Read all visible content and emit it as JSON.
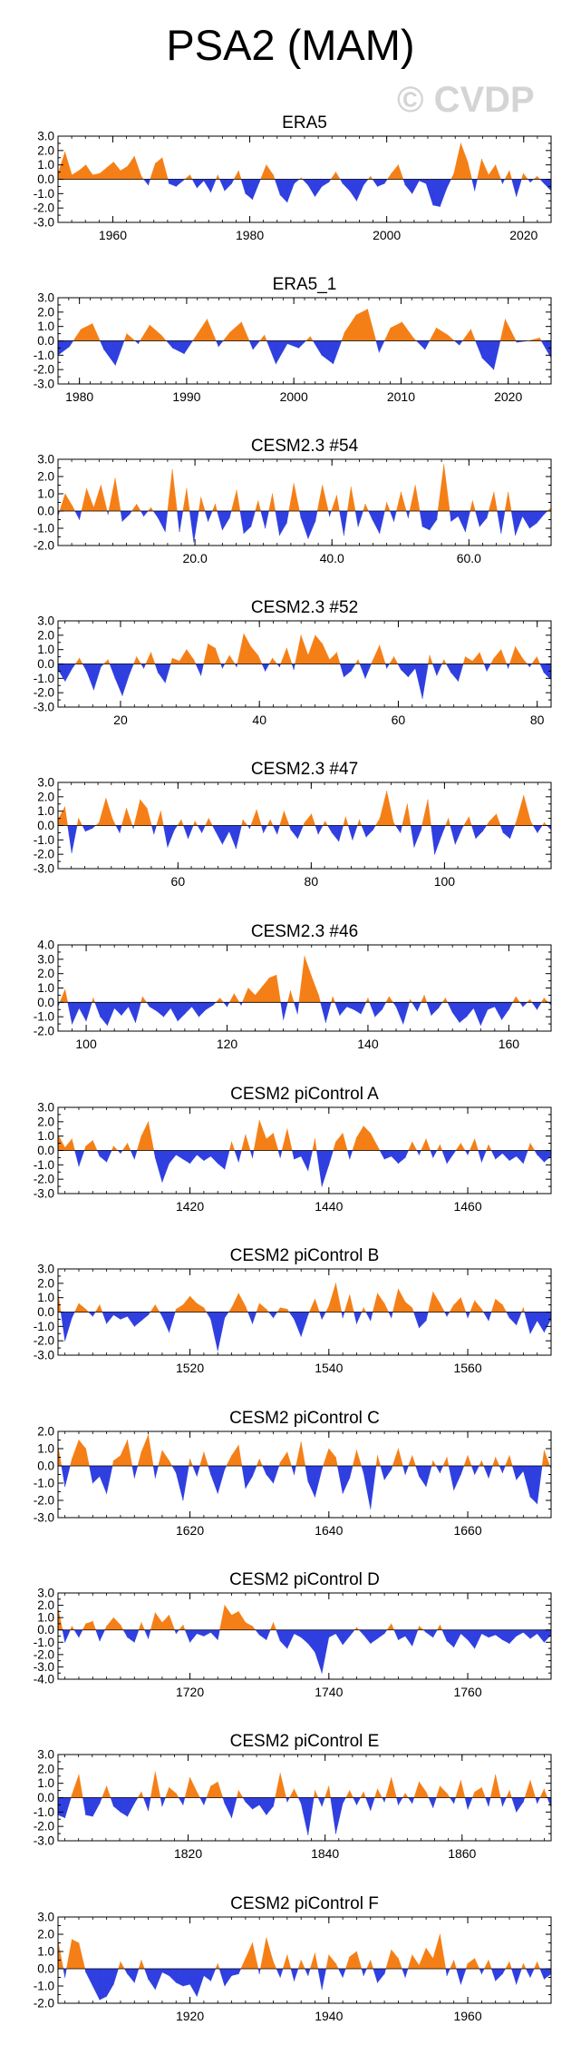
{
  "header": {
    "title": "PSA2 (MAM)",
    "watermark": "© CVDP"
  },
  "colors": {
    "positive": "#f57f17",
    "negative": "#2f3fe0",
    "axis": "#000000"
  },
  "chart_data": [
    {
      "type": "area",
      "title": "ERA5",
      "xlim": [
        1952,
        2024
      ],
      "ylim": [
        -3,
        3
      ],
      "yticks": [
        -3,
        -2,
        -1,
        0,
        1,
        2,
        3
      ],
      "ytick_labels": [
        "-3.0",
        "-2.0",
        "-1.0",
        "0.0",
        "1.0",
        "2.0",
        "3.0"
      ],
      "xticks": [
        1960,
        1980,
        2000,
        2020
      ],
      "xtick_labels": [
        "1960",
        "1980",
        "2000",
        "2020"
      ],
      "values": [
        0.4,
        1.9,
        0.3,
        0.6,
        1.0,
        0.3,
        0.4,
        0.8,
        1.2,
        0.6,
        0.9,
        1.6,
        0.2,
        -0.4,
        1.1,
        1.5,
        -0.3,
        -0.5,
        -0.1,
        0.3,
        -0.6,
        -0.1,
        -0.9,
        0.3,
        -0.8,
        -0.3,
        0.6,
        -1.0,
        -1.4,
        -0.2,
        1.0,
        0.3,
        -1.1,
        -1.6,
        -0.3,
        0.1,
        -0.4,
        -1.2,
        -0.5,
        -0.2,
        0.5,
        -0.3,
        -0.8,
        -1.5,
        -0.4,
        0.2,
        -0.5,
        -0.3,
        0.4,
        1.0,
        -0.4,
        -1.0,
        -0.1,
        -0.3,
        -1.8,
        -1.9,
        -0.6,
        0.4,
        2.5,
        1.2,
        -0.8,
        1.4,
        0.3,
        1.0,
        -0.3,
        0.6,
        -1.2,
        0.4,
        -0.2,
        0.2,
        -0.3,
        -0.8
      ]
    },
    {
      "type": "area",
      "title": "ERA5_1",
      "xlim": [
        1978,
        2024
      ],
      "ylim": [
        -3,
        3
      ],
      "yticks": [
        -3,
        -2,
        -1,
        0,
        1,
        2,
        3
      ],
      "ytick_labels": [
        "-3.0",
        "-2.0",
        "-1.0",
        "0.0",
        "1.0",
        "2.0",
        "3.0"
      ],
      "xticks": [
        1980,
        1990,
        2000,
        2010,
        2020
      ],
      "xtick_labels": [
        "1980",
        "1990",
        "2000",
        "2010",
        "2020"
      ],
      "values": [
        -1.0,
        -0.4,
        0.8,
        1.2,
        -0.6,
        -1.7,
        0.5,
        -0.2,
        1.1,
        0.4,
        -0.5,
        -0.9,
        0.3,
        1.5,
        -0.4,
        0.6,
        1.3,
        -0.6,
        0.4,
        -1.6,
        -0.2,
        -0.5,
        0.3,
        -1.0,
        -1.6,
        0.6,
        1.8,
        2.2,
        -0.8,
        0.9,
        1.3,
        0.2,
        -0.6,
        0.9,
        0.4,
        -0.3,
        0.8,
        -1.2,
        -2.0,
        1.5,
        -0.1,
        0.0,
        0.2,
        -1.2
      ]
    },
    {
      "type": "area",
      "title": "CESM2.3 #54",
      "xlim": [
        0,
        72
      ],
      "ylim": [
        -2,
        3
      ],
      "yticks": [
        -2,
        -1,
        0,
        1,
        2,
        3
      ],
      "ytick_labels": [
        "-2.0",
        "-1.0",
        "0.0",
        "1.0",
        "2.0",
        "3.0"
      ],
      "xticks": [
        20,
        40,
        60
      ],
      "xtick_labels": [
        "20.0",
        "40.0",
        "60.0"
      ],
      "values": [
        -0.3,
        1.0,
        0.3,
        -0.5,
        1.3,
        0.2,
        1.5,
        -0.2,
        1.9,
        -0.6,
        -0.2,
        0.4,
        -0.3,
        0.2,
        -0.4,
        -1.2,
        2.4,
        -1.2,
        1.3,
        -1.8,
        0.8,
        -0.6,
        0.4,
        -1.1,
        -0.4,
        1.2,
        -1.3,
        -0.9,
        0.6,
        -1.0,
        1.0,
        -1.4,
        -0.7,
        1.6,
        -0.4,
        -1.6,
        -0.6,
        1.5,
        -0.3,
        0.9,
        -1.4,
        1.4,
        -0.9,
        0.4,
        -0.5,
        -1.3,
        0.5,
        -0.6,
        1.1,
        -0.4,
        1.5,
        -0.9,
        -1.1,
        -0.5,
        2.7,
        -0.6,
        -0.3,
        -1.2,
        0.6,
        -0.9,
        -0.4,
        1.1,
        -1.3,
        1.1,
        -1.4,
        -0.3,
        -1.0,
        -0.7,
        -0.2,
        0.2
      ]
    },
    {
      "type": "area",
      "title": "CESM2.3 #52",
      "xlim": [
        11,
        82
      ],
      "ylim": [
        -3,
        3
      ],
      "yticks": [
        -3,
        -2,
        -1,
        0,
        1,
        2,
        3
      ],
      "ytick_labels": [
        "-3.0",
        "-2.0",
        "-1.0",
        "0.0",
        "1.0",
        "2.0",
        "3.0"
      ],
      "xticks": [
        20,
        40,
        60,
        80
      ],
      "xtick_labels": [
        "20",
        "40",
        "60",
        "80"
      ],
      "values": [
        -0.4,
        -1.2,
        -0.3,
        0.4,
        -0.5,
        -1.8,
        -0.2,
        0.3,
        -1.0,
        -2.2,
        -0.7,
        0.5,
        -0.3,
        0.8,
        -0.6,
        -1.3,
        0.4,
        0.2,
        1.0,
        0.3,
        -0.8,
        1.4,
        1.1,
        -0.3,
        0.6,
        -0.2,
        2.1,
        1.2,
        0.6,
        -0.5,
        0.4,
        -0.2,
        1.1,
        -0.4,
        2.0,
        0.6,
        2.0,
        1.4,
        0.3,
        0.8,
        -0.9,
        -0.5,
        0.3,
        -1.0,
        0.2,
        1.3,
        -0.3,
        0.5,
        -0.4,
        -0.9,
        -0.3,
        -2.4,
        0.6,
        -0.8,
        0.3,
        -0.6,
        -1.2,
        0.5,
        0.2,
        0.8,
        -0.5,
        0.4,
        1.0,
        -0.3,
        1.2,
        0.4,
        -0.2,
        0.5,
        -0.6,
        -1.1
      ]
    },
    {
      "type": "area",
      "title": "CESM2.3 #47",
      "xlim": [
        42,
        116
      ],
      "ylim": [
        -3,
        3
      ],
      "yticks": [
        -3,
        -2,
        -1,
        0,
        1,
        2,
        3
      ],
      "ytick_labels": [
        "-3.0",
        "-2.0",
        "-1.0",
        "0.0",
        "1.0",
        "2.0",
        "3.0"
      ],
      "xticks": [
        60,
        80,
        100
      ],
      "xtick_labels": [
        "60",
        "80",
        "100"
      ],
      "values": [
        0.4,
        1.3,
        -1.9,
        0.5,
        -0.4,
        -0.2,
        0.2,
        1.9,
        0.4,
        -0.5,
        1.2,
        -0.2,
        1.8,
        1.2,
        -0.6,
        1.0,
        -1.5,
        -0.3,
        0.4,
        -0.9,
        0.3,
        -0.5,
        0.5,
        -0.4,
        -1.3,
        -0.4,
        -1.6,
        0.4,
        -0.2,
        1.1,
        -0.5,
        0.4,
        -0.6,
        1.0,
        -0.3,
        -0.9,
        0.2,
        0.8,
        -0.6,
        0.3,
        -0.5,
        -1.1,
        0.6,
        -1.0,
        0.4,
        -0.8,
        -0.3,
        0.5,
        2.4,
        0.2,
        -0.5,
        1.5,
        -1.5,
        -0.3,
        1.8,
        -2.0,
        -0.7,
        0.5,
        -1.3,
        -0.2,
        0.6,
        -0.9,
        -0.4,
        0.3,
        0.8,
        -0.5,
        -0.9,
        0.4,
        2.1,
        0.3,
        -0.5,
        0.2,
        -0.3
      ]
    },
    {
      "type": "area",
      "title": "CESM2.3 #46",
      "xlim": [
        96,
        166
      ],
      "ylim": [
        -2,
        4
      ],
      "yticks": [
        -2,
        -1,
        0,
        1,
        2,
        3,
        4
      ],
      "ytick_labels": [
        "-2.0",
        "-1.0",
        "0.0",
        "1.0",
        "2.0",
        "3.0",
        "4.0"
      ],
      "xticks": [
        100,
        120,
        140,
        160
      ],
      "xtick_labels": [
        "100",
        "120",
        "140",
        "160"
      ],
      "values": [
        -0.3,
        0.9,
        -1.5,
        -0.4,
        -1.3,
        0.3,
        -1.0,
        -1.6,
        -0.4,
        -0.9,
        -0.3,
        -1.4,
        0.4,
        -0.3,
        -0.6,
        -1.0,
        -0.4,
        -1.3,
        -0.8,
        -0.3,
        -1.0,
        -0.5,
        -0.2,
        0.3,
        -0.3,
        0.6,
        -0.2,
        1.0,
        0.5,
        1.1,
        1.7,
        1.9,
        -1.2,
        0.8,
        -0.8,
        3.2,
        1.8,
        0.5,
        -1.4,
        0.4,
        -0.9,
        -0.3,
        -0.5,
        -0.8,
        0.3,
        -1.0,
        -0.5,
        0.4,
        -0.3,
        -1.5,
        0.2,
        -0.6,
        0.5,
        -0.9,
        -0.4,
        0.3,
        -0.7,
        -1.4,
        -1.0,
        -0.4,
        -1.6,
        -0.5,
        -0.3,
        -1.2,
        -0.5,
        0.4,
        -0.3,
        0.2,
        -0.5,
        0.3,
        -0.2
      ]
    },
    {
      "type": "area",
      "title": "CESM2 piControl A",
      "xlim": [
        1401,
        1472
      ],
      "ylim": [
        -3,
        3
      ],
      "yticks": [
        -3,
        -2,
        -1,
        0,
        1,
        2,
        3
      ],
      "ytick_labels": [
        "-3.0",
        "-2.0",
        "-1.0",
        "0.0",
        "1.0",
        "2.0",
        "3.0"
      ],
      "xticks": [
        1420,
        1440,
        1460
      ],
      "xtick_labels": [
        "1420",
        "1440",
        "1460"
      ],
      "values": [
        1.1,
        0.2,
        0.8,
        -1.1,
        0.3,
        0.7,
        -0.4,
        -0.8,
        0.3,
        -0.2,
        0.5,
        -0.6,
        1.0,
        2.0,
        -0.5,
        -2.2,
        -0.9,
        -0.3,
        -0.6,
        -0.9,
        -0.3,
        -0.7,
        -0.4,
        -0.9,
        -1.3,
        0.6,
        -0.8,
        1.1,
        -0.5,
        2.1,
        0.8,
        1.2,
        -0.5,
        1.5,
        -0.6,
        -0.4,
        -1.4,
        0.8,
        -2.5,
        -1.0,
        0.6,
        1.2,
        -0.6,
        0.9,
        1.7,
        1.2,
        0.3,
        -0.6,
        -0.4,
        -0.9,
        -0.5,
        0.6,
        -0.3,
        0.8,
        -0.5,
        0.4,
        -0.9,
        -0.2,
        0.5,
        -0.3,
        0.8,
        -0.8,
        0.4,
        -0.6,
        -0.2,
        -0.7,
        -0.4,
        -0.9,
        0.5,
        -0.3,
        -0.8,
        -0.4
      ]
    },
    {
      "type": "area",
      "title": "CESM2 piControl B",
      "xlim": [
        1501,
        1572
      ],
      "ylim": [
        -3,
        3
      ],
      "yticks": [
        -3,
        -2,
        -1,
        0,
        1,
        2,
        3
      ],
      "ytick_labels": [
        "-3.0",
        "-2.0",
        "-1.0",
        "0.0",
        "1.0",
        "2.0",
        "3.0"
      ],
      "xticks": [
        1520,
        1540,
        1560
      ],
      "xtick_labels": [
        "1520",
        "1540",
        "1560"
      ],
      "values": [
        1.4,
        -2.0,
        -0.4,
        0.6,
        0.2,
        -0.3,
        0.5,
        -0.8,
        -0.2,
        -0.5,
        -0.3,
        -1.0,
        -0.6,
        -0.2,
        0.5,
        -0.3,
        -1.4,
        0.2,
        0.5,
        1.1,
        0.6,
        0.3,
        -0.5,
        -2.7,
        -0.4,
        0.3,
        1.3,
        0.4,
        -0.8,
        0.6,
        0.2,
        -0.4,
        0.3,
        0.2,
        -0.5,
        -1.7,
        -0.2,
        0.9,
        -0.5,
        0.4,
        2.0,
        -0.4,
        1.2,
        -0.8,
        0.3,
        -0.6,
        1.3,
        0.6,
        -0.4,
        1.6,
        0.7,
        0.3,
        -1.1,
        -0.6,
        1.4,
        0.6,
        -0.3,
        0.5,
        1.0,
        -0.4,
        0.8,
        0.2,
        -0.6,
        0.9,
        0.5,
        -0.4,
        -0.9,
        0.3,
        -1.5,
        -0.6,
        -1.4,
        -0.5
      ]
    },
    {
      "type": "area",
      "title": "CESM2 piControl C",
      "xlim": [
        1601,
        1672
      ],
      "ylim": [
        -3,
        2
      ],
      "yticks": [
        -3,
        -2,
        -1,
        0,
        1,
        2
      ],
      "ytick_labels": [
        "-3.0",
        "-2.0",
        "-1.0",
        "0.0",
        "1.0",
        "2.0"
      ],
      "xticks": [
        1620,
        1640,
        1660
      ],
      "xtick_labels": [
        "1620",
        "1640",
        "1660"
      ],
      "values": [
        1.2,
        -1.2,
        0.4,
        1.5,
        1.0,
        -1.0,
        -0.6,
        -1.6,
        0.3,
        0.6,
        1.5,
        -0.7,
        0.8,
        1.8,
        -0.7,
        0.9,
        0.3,
        -0.4,
        -2.0,
        0.4,
        -0.6,
        0.8,
        -0.5,
        -1.6,
        -0.2,
        0.6,
        1.2,
        -1.3,
        -0.6,
        0.4,
        -0.5,
        -1.0,
        0.2,
        0.8,
        -0.5,
        1.4,
        -0.9,
        -1.8,
        -0.2,
        1.0,
        0.5,
        -1.6,
        -0.7,
        0.9,
        -0.4,
        -2.5,
        0.6,
        -0.8,
        -0.2,
        1.0,
        -0.5,
        0.6,
        -0.6,
        -1.2,
        0.3,
        -0.4,
        0.5,
        -1.4,
        -0.5,
        0.6,
        -0.5,
        0.3,
        -0.7,
        0.5,
        -0.4,
        0.6,
        -0.8,
        -0.3,
        -1.8,
        -2.2,
        0.9,
        -0.2
      ]
    },
    {
      "type": "area",
      "title": "CESM2 piControl D",
      "xlim": [
        1701,
        1772
      ],
      "ylim": [
        -4,
        3
      ],
      "yticks": [
        -4,
        -3,
        -2,
        -1,
        0,
        1,
        2,
        3
      ],
      "ytick_labels": [
        "-4.0",
        "-3.0",
        "-2.0",
        "-1.0",
        "0.0",
        "1.0",
        "2.0",
        "3.0"
      ],
      "xticks": [
        1720,
        1740,
        1760
      ],
      "xtick_labels": [
        "1720",
        "1740",
        "1760"
      ],
      "values": [
        1.8,
        -1.0,
        0.3,
        -0.6,
        0.5,
        0.7,
        -0.9,
        0.3,
        1.0,
        0.4,
        -0.6,
        -1.0,
        0.6,
        -0.7,
        1.4,
        0.6,
        1.2,
        -0.3,
        0.4,
        -1.0,
        -0.3,
        -0.5,
        -0.2,
        -0.8,
        2.0,
        1.2,
        1.5,
        0.6,
        0.3,
        -0.4,
        -0.8,
        0.6,
        -0.9,
        -1.5,
        -0.3,
        -0.6,
        -1.1,
        -1.8,
        -3.5,
        -0.6,
        -0.3,
        -1.2,
        -0.5,
        0.2,
        -0.4,
        -1.1,
        -0.7,
        -0.3,
        0.5,
        -0.8,
        -0.5,
        -1.3,
        0.3,
        -0.2,
        -0.6,
        0.4,
        -0.9,
        -1.4,
        -0.3,
        -0.8,
        -1.5,
        -0.3,
        -0.6,
        -0.4,
        -0.8,
        -1.1,
        -0.5,
        -0.2,
        -0.7,
        -0.3,
        -1.0,
        -0.4
      ]
    },
    {
      "type": "area",
      "title": "CESM2 piControl E",
      "xlim": [
        1801,
        1873
      ],
      "ylim": [
        -3,
        3
      ],
      "yticks": [
        -3,
        -2,
        -1,
        0,
        1,
        2,
        3
      ],
      "ytick_labels": [
        "-3.0",
        "-2.0",
        "-1.0",
        "0.0",
        "1.0",
        "2.0",
        "3.0"
      ],
      "xticks": [
        1820,
        1840,
        1860
      ],
      "xtick_labels": [
        "1820",
        "1840",
        "1860"
      ],
      "values": [
        -1.2,
        -1.4,
        0.2,
        1.6,
        -1.2,
        -1.3,
        -0.4,
        0.8,
        -0.6,
        -1.0,
        -1.3,
        -0.4,
        0.4,
        -0.9,
        1.8,
        -0.6,
        0.7,
        0.3,
        -0.5,
        1.4,
        0.4,
        -0.5,
        0.8,
        1.1,
        -0.4,
        -1.4,
        0.5,
        -0.3,
        -0.8,
        -0.5,
        -1.2,
        -0.6,
        1.7,
        -0.3,
        0.6,
        -0.4,
        -2.6,
        0.5,
        -0.6,
        0.8,
        -2.5,
        -0.4,
        0.5,
        -0.5,
        0.4,
        -0.9,
        0.6,
        -0.3,
        1.4,
        -0.5,
        0.3,
        -0.4,
        1.1,
        0.4,
        -0.7,
        0.8,
        0.3,
        -0.4,
        1.2,
        -0.8,
        0.4,
        0.7,
        -0.6,
        1.6,
        -0.6,
        0.5,
        -1.0,
        -0.3,
        1.2,
        -0.4,
        0.6,
        -0.7
      ]
    },
    {
      "type": "area",
      "title": "CESM2 piControl F",
      "xlim": [
        1901,
        1972
      ],
      "ylim": [
        -2,
        3
      ],
      "yticks": [
        -2,
        -1,
        0,
        1,
        2,
        3
      ],
      "ytick_labels": [
        "-2.0",
        "-1.0",
        "0.0",
        "1.0",
        "2.0",
        "3.0"
      ],
      "xticks": [
        1920,
        1940,
        1960
      ],
      "xtick_labels": [
        "1920",
        "1940",
        "1960"
      ],
      "values": [
        1.6,
        -0.5,
        1.7,
        1.5,
        -0.2,
        -1.0,
        -1.8,
        -1.6,
        -0.9,
        0.4,
        -0.3,
        -0.8,
        0.5,
        -0.6,
        -1.2,
        -0.2,
        -0.4,
        -0.8,
        -1.0,
        -0.9,
        -1.6,
        -0.4,
        -0.7,
        0.3,
        -1.0,
        -0.4,
        -0.3,
        0.6,
        1.5,
        -0.3,
        1.8,
        0.4,
        -0.5,
        0.8,
        -0.7,
        0.5,
        -0.4,
        0.9,
        -1.2,
        0.8,
        0.3,
        -0.5,
        0.7,
        1.0,
        -0.4,
        0.5,
        -0.8,
        -0.3,
        1.1,
        0.6,
        -0.5,
        0.8,
        0.2,
        1.2,
        0.6,
        2.0,
        -0.4,
        0.5,
        -0.9,
        0.3,
        0.6,
        -0.3,
        0.5,
        -0.7,
        -0.3,
        0.4,
        -0.9,
        0.3,
        -0.5,
        0.4,
        -0.6,
        -0.3
      ]
    }
  ]
}
